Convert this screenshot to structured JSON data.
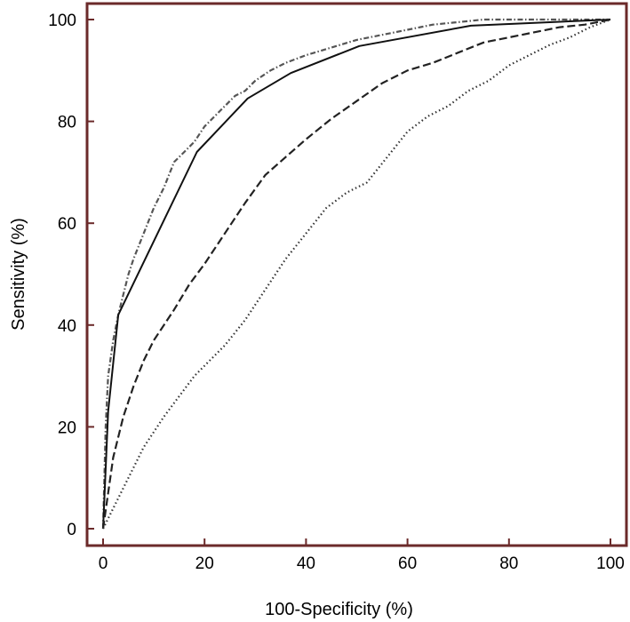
{
  "chart_data": {
    "type": "line",
    "title": "",
    "xlabel": "100-Specificity (%)",
    "ylabel": "Sensitivity (%)",
    "xlim": [
      0,
      100
    ],
    "ylim": [
      0,
      100
    ],
    "xticks": [
      0,
      20,
      40,
      60,
      80,
      100
    ],
    "yticks": [
      0,
      20,
      40,
      60,
      80,
      100
    ],
    "xtick_labels": [
      "0",
      "20",
      "40",
      "60",
      "80",
      "100"
    ],
    "ytick_labels": [
      "0",
      "20",
      "40",
      "60",
      "80",
      "100"
    ],
    "grid": false,
    "legend": "none",
    "frame_color": "#6b2a2a",
    "series": [
      {
        "style": "dashdot",
        "color": "#555555",
        "x": [
          0,
          0.5,
          1,
          2,
          3,
          4,
          5,
          6,
          8,
          10,
          12,
          14,
          16,
          18,
          20,
          22,
          24,
          26,
          28,
          30,
          33,
          36,
          40,
          45,
          50,
          55,
          60,
          65,
          70,
          75,
          80,
          90,
          100
        ],
        "y": [
          0,
          20,
          30,
          37,
          42,
          46,
          50,
          53,
          58,
          63,
          67,
          72,
          74,
          76,
          79,
          81,
          83,
          85,
          86,
          88,
          90,
          91.5,
          93,
          94.5,
          96,
          97,
          98,
          99,
          99.5,
          100,
          100,
          100,
          100
        ]
      },
      {
        "style": "solid",
        "color": "#111111",
        "x": [
          0,
          1,
          3,
          18.5,
          28.5,
          37,
          50.5,
          72.5,
          100
        ],
        "y": [
          0,
          23,
          42,
          74,
          84.5,
          89.5,
          94.8,
          98.8,
          100
        ]
      },
      {
        "style": "dashed",
        "color": "#222222",
        "x": [
          0,
          1,
          2,
          4,
          6,
          8,
          10,
          12,
          14,
          17,
          20,
          24,
          28,
          32,
          36,
          40,
          45,
          50,
          55,
          60,
          65,
          70,
          75,
          80,
          85,
          90,
          95,
          100
        ],
        "y": [
          0,
          7,
          14,
          22,
          28,
          33,
          37,
          40,
          43,
          48,
          52,
          58,
          64,
          69.5,
          73,
          76.5,
          80.5,
          84,
          87.5,
          90,
          91.5,
          93.5,
          95.5,
          96.5,
          97.5,
          98.5,
          99,
          100
        ]
      },
      {
        "style": "dotted",
        "color": "#333333",
        "x": [
          0,
          2,
          4,
          6,
          8,
          10,
          12,
          15,
          18,
          20,
          24,
          28,
          32,
          36,
          40,
          44,
          48,
          52,
          56,
          60,
          64,
          68,
          72,
          76,
          80,
          84,
          88,
          92,
          96,
          100
        ],
        "y": [
          0,
          4,
          8,
          12,
          16,
          19,
          22,
          26,
          30,
          32,
          36,
          41,
          47,
          53,
          58,
          63,
          66,
          68,
          73,
          78,
          81,
          83,
          86,
          88,
          91,
          93,
          95,
          96.5,
          98.5,
          100
        ]
      }
    ]
  }
}
